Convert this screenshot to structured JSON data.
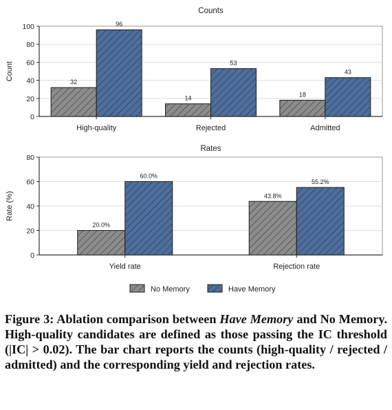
{
  "chart_data": [
    {
      "type": "bar",
      "title": "Counts",
      "ylabel": "Count",
      "xlabel": "",
      "ylim": [
        0,
        100
      ],
      "yticks": [
        0,
        20,
        40,
        60,
        80,
        100
      ],
      "grid": true,
      "categories": [
        "High-quality",
        "Rejected",
        "Admitted"
      ],
      "series": [
        {
          "name": "No Memory",
          "values": [
            32,
            14,
            18
          ],
          "labels": [
            "32",
            "14",
            "18"
          ]
        },
        {
          "name": "Have Memory",
          "values": [
            96,
            53,
            43
          ],
          "labels": [
            "96",
            "53",
            "43"
          ]
        }
      ]
    },
    {
      "type": "bar",
      "title": "Rates",
      "ylabel": "Rate (%)",
      "xlabel": "",
      "ylim": [
        0,
        80
      ],
      "yticks": [
        0,
        20,
        40,
        60,
        80
      ],
      "grid": true,
      "categories": [
        "Yield rate",
        "Rejection rate"
      ],
      "series": [
        {
          "name": "No Memory",
          "values": [
            20.0,
            43.8
          ],
          "labels": [
            "20.0%",
            "43.8%"
          ]
        },
        {
          "name": "Have Memory",
          "values": [
            60.0,
            55.2
          ],
          "labels": [
            "60.0%",
            "55.2%"
          ]
        }
      ]
    }
  ],
  "legend": {
    "placement": "bottom",
    "items": [
      {
        "label": "No Memory",
        "color": "#8c8c8c"
      },
      {
        "label": "Have Memory",
        "color": "#4e6e9b"
      }
    ]
  },
  "colors": {
    "no_memory": "#8c8c8c",
    "have_memory": "#4e6e9b",
    "axis": "#333333",
    "grid": "#dddddd"
  },
  "caption": {
    "prefix": "Figure 3: Ablation comparison between ",
    "emph": "Have Memory",
    "rest": " and No Memory. High-quality candidates are defined as those passing the IC threshold (|IC| > 0.02). The bar chart reports the counts (high-quality / rejected / admitted) and the corresponding yield and rejection rates."
  }
}
